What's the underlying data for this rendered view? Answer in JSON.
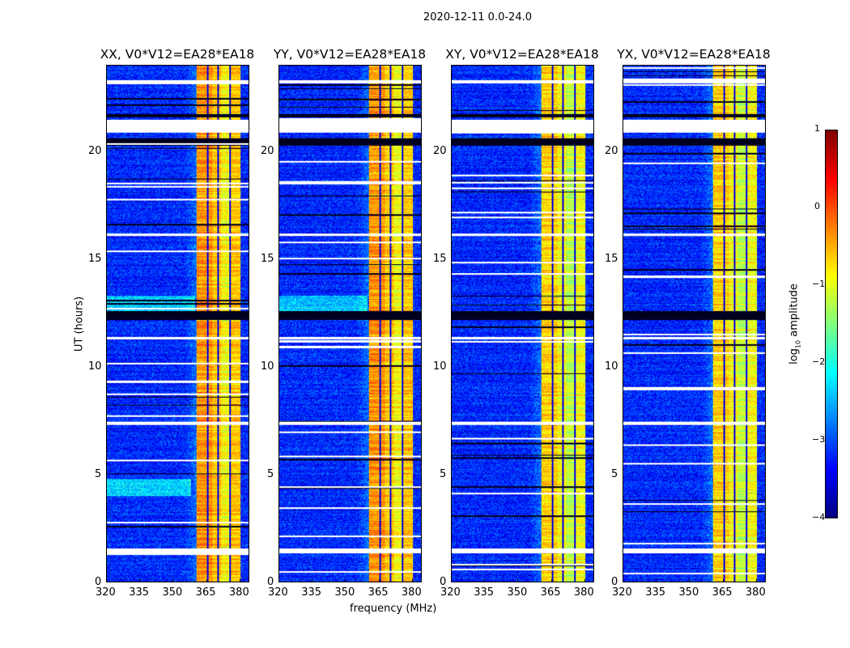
{
  "chart_data": {
    "type": "heatmap",
    "title": "2020-12-11 0.0-24.0",
    "xlabel": "frequency (MHz)",
    "ylabel": "UT (hours)",
    "xlim": [
      320,
      384.4
    ],
    "ylim": [
      0,
      24
    ],
    "xticks": [
      "320",
      "335",
      "350",
      "365",
      "380"
    ],
    "yticks": [
      "0",
      "5",
      "10",
      "15",
      "20"
    ],
    "panels": [
      {
        "title": "XX, V0*V12=EA28*EA18",
        "band_level": -0.6
      },
      {
        "title": "YY, V0*V12=EA28*EA18",
        "band_level": -0.6
      },
      {
        "title": "XY, V0*V12=EA28*EA18",
        "band_level": -0.9
      },
      {
        "title": "YX, V0*V12=EA28*EA18",
        "band_level": -0.9
      }
    ],
    "background_level": -3.2,
    "band_MHz": [
      360.7,
      380.4
    ],
    "band_gaps_MHz": [
      365.8,
      370.5,
      376.0
    ],
    "flagged_hours": [
      [
        1.35,
        1.55
      ],
      [
        7.3,
        7.45
      ],
      [
        11.3,
        11.4
      ],
      [
        16.1,
        16.2
      ],
      [
        20.9,
        21.5
      ],
      [
        23.2,
        23.35
      ]
    ],
    "zero_hours": [
      [
        12.2,
        12.6
      ],
      [
        20.3,
        20.65
      ],
      [
        21.6,
        21.75
      ]
    ],
    "colorbar": {
      "label_main": "log",
      "label_sub": "10",
      "label_rest": " amplitude",
      "range": [
        -4,
        1
      ],
      "ticks": [
        "1",
        "0",
        "−1",
        "−2",
        "−3",
        "−4"
      ],
      "colormap": "jet"
    }
  }
}
